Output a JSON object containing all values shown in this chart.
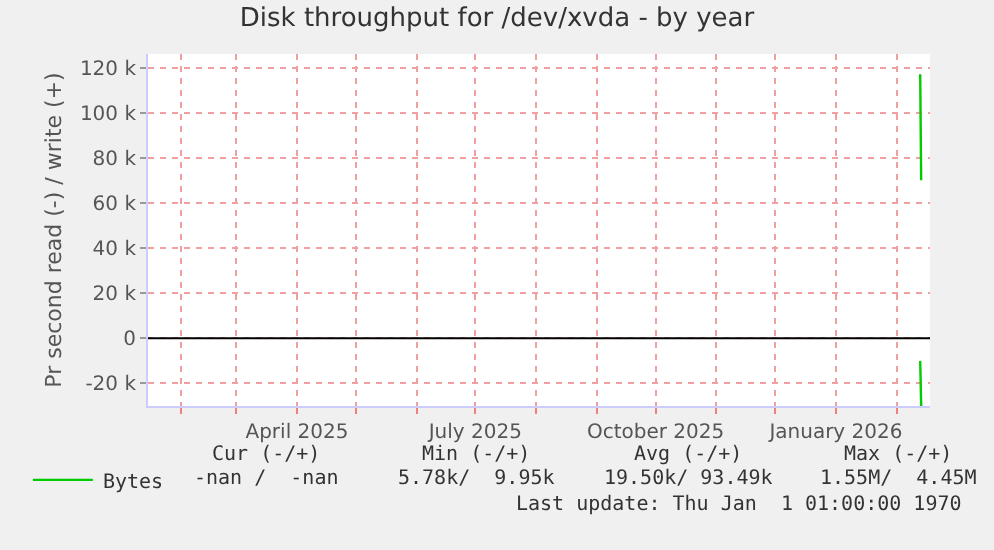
{
  "chart_data": {
    "type": "line",
    "title": "Disk throughput for /dev/xvda - by year",
    "ylabel": "Pr second read (-) / write (+)",
    "x": [
      "2026-02-13",
      "2026-02-13T12:00"
    ],
    "series": [
      {
        "name": "Bytes",
        "color": "#00cc00",
        "values": [
          117000,
          70000
        ]
      },
      {
        "color": "#00cc00",
        "values": [
          -10000,
          -30000
        ]
      }
    ],
    "xlim": [
      "2025-01-15",
      "2026-02-18"
    ],
    "xticks": [
      {
        "value": "2025-02-01",
        "label": null
      },
      {
        "value": "2025-03-01",
        "label": null
      },
      {
        "value": "2025-04-01",
        "label": "April 2025"
      },
      {
        "value": "2025-05-01",
        "label": null
      },
      {
        "value": "2025-06-01",
        "label": null
      },
      {
        "value": "2025-07-01",
        "label": "July 2025"
      },
      {
        "value": "2025-08-01",
        "label": null
      },
      {
        "value": "2025-09-01",
        "label": null
      },
      {
        "value": "2025-10-01",
        "label": "October 2025"
      },
      {
        "value": "2025-11-01",
        "label": null
      },
      {
        "value": "2025-12-01",
        "label": null
      },
      {
        "value": "2026-01-01",
        "label": "January 2026"
      },
      {
        "value": "2026-02-01",
        "label": null
      }
    ],
    "ylim": [
      -30000,
      126000
    ],
    "yticks": [
      {
        "value": -20000,
        "label": "-20 k"
      },
      {
        "value": 0,
        "label": "0"
      },
      {
        "value": 20000,
        "label": "20 k"
      },
      {
        "value": 40000,
        "label": "40 k"
      },
      {
        "value": 60000,
        "label": "60 k"
      },
      {
        "value": 80000,
        "label": "80 k"
      },
      {
        "value": 100000,
        "label": "100 k"
      },
      {
        "value": 120000,
        "label": "120 k"
      }
    ],
    "grid": true,
    "legend": "bottom left",
    "marker": "none",
    "line_style": "solid",
    "ref_lines": [
      {
        "axis": "y",
        "value": 0,
        "color": "#000000"
      }
    ],
    "annotations": [
      "Cur (-/+)",
      "Min (-/+)",
      "Avg (-/+)",
      "Max (-/+)",
      "-nan /  -nan",
      "5.78k/  9.95k",
      "19.50k/ 93.49k",
      "1.55M/  4.45M",
      "Last update: Thu Jan  1 01:00:00 1970"
    ]
  }
}
